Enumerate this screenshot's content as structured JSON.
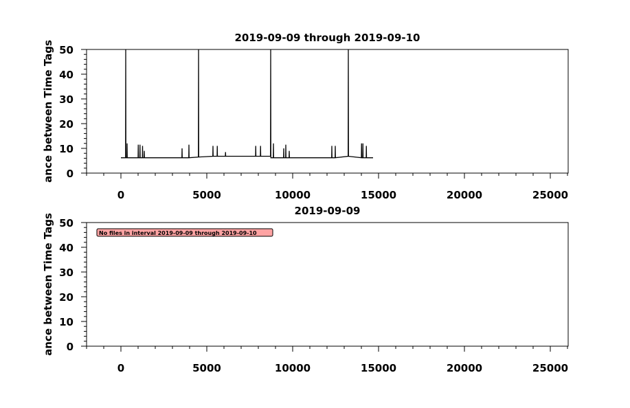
{
  "chart_data": [
    {
      "type": "line",
      "title": "2019-09-09 through 2019-09-10",
      "ylabel": "ance between Time Tags",
      "x": [
        0,
        270,
        280,
        290,
        350,
        360,
        370,
        1000,
        1010,
        1020,
        1100,
        1110,
        1120,
        1250,
        1260,
        1270,
        1350,
        1360,
        1370,
        3550,
        3560,
        3570,
        3950,
        3960,
        3970,
        4510,
        4520,
        4530,
        5350,
        5360,
        5370,
        5600,
        5610,
        5620,
        6080,
        6090,
        6100,
        7840,
        7850,
        7860,
        8120,
        8130,
        8140,
        8710,
        8720,
        8730,
        8870,
        8880,
        8890,
        9470,
        9480,
        9490,
        9590,
        9600,
        9610,
        9790,
        9800,
        9810,
        12270,
        12280,
        12290,
        12470,
        12480,
        12490,
        13230,
        13240,
        13250,
        14000,
        14010,
        14020,
        14080,
        14090,
        14100,
        14280,
        14290,
        14300,
        14680
      ],
      "series": [
        {
          "color": "#000000",
          "values": [
            6.2,
            6.2,
            50,
            6.2,
            6.2,
            12,
            6.2,
            6.2,
            11.5,
            6.2,
            6.2,
            11.5,
            6.2,
            6.2,
            11,
            6.2,
            6.2,
            9,
            6.2,
            6.2,
            10,
            6.2,
            6.2,
            11.5,
            6.2,
            6.5,
            50,
            6.5,
            6.8,
            11,
            6.8,
            6.8,
            11,
            6.8,
            6.8,
            8.5,
            6.8,
            6.8,
            11,
            6.8,
            6.8,
            11,
            6.8,
            6.8,
            50,
            6.2,
            6.2,
            12,
            6.2,
            6.2,
            10,
            6.2,
            6.2,
            11.5,
            6.2,
            6.2,
            9,
            6.2,
            6.2,
            11,
            6.2,
            6.2,
            11,
            6.2,
            6.8,
            50,
            6.8,
            6.2,
            12,
            6.2,
            6.2,
            12,
            6.2,
            6.2,
            11,
            6.2,
            6.2
          ]
        }
      ],
      "xlim": [
        -2000,
        26040
      ],
      "xticks": [
        0,
        5000,
        10000,
        15000,
        20000,
        25000
      ],
      "ylim": [
        0,
        50
      ],
      "yticks": [
        0,
        10,
        20,
        30,
        40,
        50
      ]
    },
    {
      "type": "line",
      "title": "2019-09-09",
      "ylabel": "ance between Time Tags",
      "annotation": "No files in interval 2019-09-09 through 2019-09-10",
      "xlim": [
        -2000,
        26040
      ],
      "xticks": [
        0,
        5000,
        10000,
        15000,
        20000,
        25000
      ],
      "ylim": [
        0,
        50
      ],
      "yticks": [
        0,
        10,
        20,
        30,
        40,
        50
      ]
    }
  ]
}
